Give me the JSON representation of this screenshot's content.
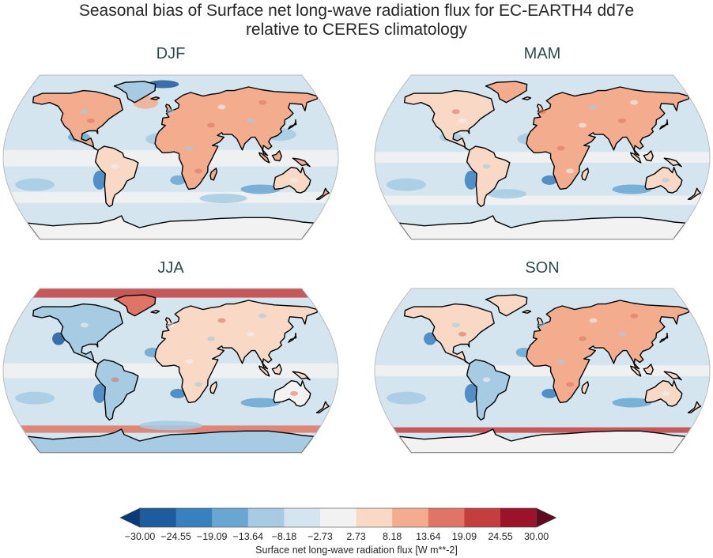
{
  "figure": {
    "title_line1": "Seasonal bias of Surface net long-wave radiation flux for EC-EARTH4 dd7e",
    "title_line2": "relative to CERES climatology"
  },
  "panels": [
    {
      "season": "DJF"
    },
    {
      "season": "MAM"
    },
    {
      "season": "JJA"
    },
    {
      "season": "SON"
    }
  ],
  "colorbar": {
    "label": "Surface net long-wave radiation flux [W m**-2]",
    "ticks": [
      "−30.00",
      "−24.55",
      "−19.09",
      "−13.64",
      "−8.18",
      "−2.73",
      "2.73",
      "8.18",
      "13.64",
      "19.09",
      "24.55",
      "30.00"
    ],
    "colors": [
      "#0b3a78",
      "#1f5c9e",
      "#3a80be",
      "#6aa6d2",
      "#a6cbe3",
      "#d5e5f0",
      "#f2f2f2",
      "#f9d8c6",
      "#f3ad8e",
      "#de7565",
      "#c33f3e",
      "#9a1329",
      "#5e0b22"
    ],
    "extend": "both"
  },
  "colors": {
    "ocean_base": "#d5e5f0",
    "title_text": "#262626",
    "panel_title_text": "#2e4a4a",
    "outline": "#bbbbbb"
  }
}
